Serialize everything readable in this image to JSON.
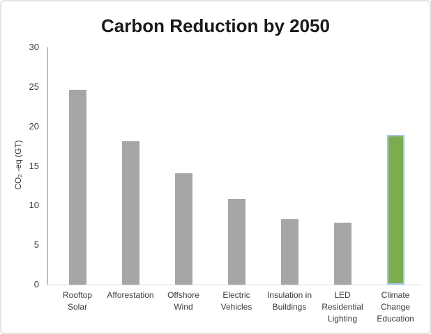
{
  "chart_data": {
    "type": "bar",
    "title": "Carbon Reduction by 2050",
    "ylabel": "CO₂ -eq (GT)",
    "xlabel": "",
    "categories": [
      "Rooftop Solar",
      "Afforestation",
      "Offshore Wind",
      "Electric Vehicles",
      "Insulation in Buildings",
      "LED Residential Lighting",
      "Climate Change Education"
    ],
    "category_lines": [
      [
        "Rooftop",
        "Solar"
      ],
      [
        "Afforestation"
      ],
      [
        "Offshore",
        "Wind"
      ],
      [
        "Electric",
        "Vehicles"
      ],
      [
        "Insulation in",
        "Buildings"
      ],
      [
        "LED",
        "Residential",
        "Lighting"
      ],
      [
        "Climate",
        "Change",
        "Education"
      ]
    ],
    "values": [
      24.6,
      18.1,
      14.1,
      10.8,
      8.3,
      7.8,
      18.9
    ],
    "ylim": [
      0,
      30
    ],
    "y_ticks": [
      0,
      5,
      10,
      15,
      20,
      25,
      30
    ],
    "grid": false,
    "legend": false,
    "colors": {
      "bar": "#A6A6A6",
      "highlight": "#7CAC50",
      "highlight_border": "#A5C6E8",
      "y_axis_line": "#AAC5E5",
      "x_axis_line": "#D9D9D9",
      "title_text": "#1A1A1A",
      "tick_text": "#3A3A3A"
    },
    "highlight_index": 6
  }
}
